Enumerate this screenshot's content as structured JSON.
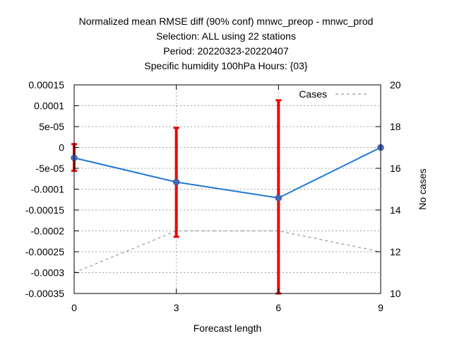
{
  "chart_data": {
    "type": "line",
    "title_lines": [
      "Normalized mean RMSE diff (90% conf) mnwc_preop - mnwc_prod",
      "Selection: ALL using    22 stations",
      "Period: 20220323-20220407",
      "Specific humidity 100hPa   Hours: {03}"
    ],
    "xlabel": "Forecast length",
    "ylabel_right": "No cases",
    "xlim": [
      0,
      9
    ],
    "ylim": [
      -0.00035,
      0.00015
    ],
    "y2lim": [
      10,
      20
    ],
    "x_ticks": [
      0,
      3,
      6,
      9
    ],
    "y_ticks": [
      {
        "v": 0.00015,
        "label": "0.00015"
      },
      {
        "v": 0.0001,
        "label": "0.0001"
      },
      {
        "v": 5e-05,
        "label": "5e-05"
      },
      {
        "v": 0,
        "label": "0"
      },
      {
        "v": -5e-05,
        "label": "-5e-05"
      },
      {
        "v": -0.0001,
        "label": "-0.0001"
      },
      {
        "v": -0.00015,
        "label": "-0.00015"
      },
      {
        "v": -0.0002,
        "label": "-0.0002"
      },
      {
        "v": -0.00025,
        "label": "-0.00025"
      },
      {
        "v": -0.0003,
        "label": "-0.0003"
      },
      {
        "v": -0.00035,
        "label": "-0.00035"
      }
    ],
    "y2_ticks": [
      10,
      12,
      14,
      16,
      18,
      20
    ],
    "grid": true,
    "legend": {
      "position": "top-right",
      "entries": [
        "Cases"
      ]
    },
    "series": [
      {
        "x": [
          0,
          3,
          6,
          9
        ],
        "y": [
          -2.5e-05,
          -8.3e-05,
          -0.000121,
          0
        ],
        "err_low": [
          -5.6e-05,
          -0.000214,
          -0.00035,
          0
        ],
        "err_high": [
          8e-06,
          4.7e-05,
          0.000113,
          0
        ],
        "color": "#1f78d2",
        "err_color": "#ee0000",
        "marker_color": "#4466bb"
      },
      {
        "name": "Cases",
        "axis": "right",
        "x": [
          0,
          3,
          6,
          9
        ],
        "y": [
          11,
          13,
          13,
          12
        ],
        "color": "#999999",
        "dashed": true
      }
    ]
  }
}
